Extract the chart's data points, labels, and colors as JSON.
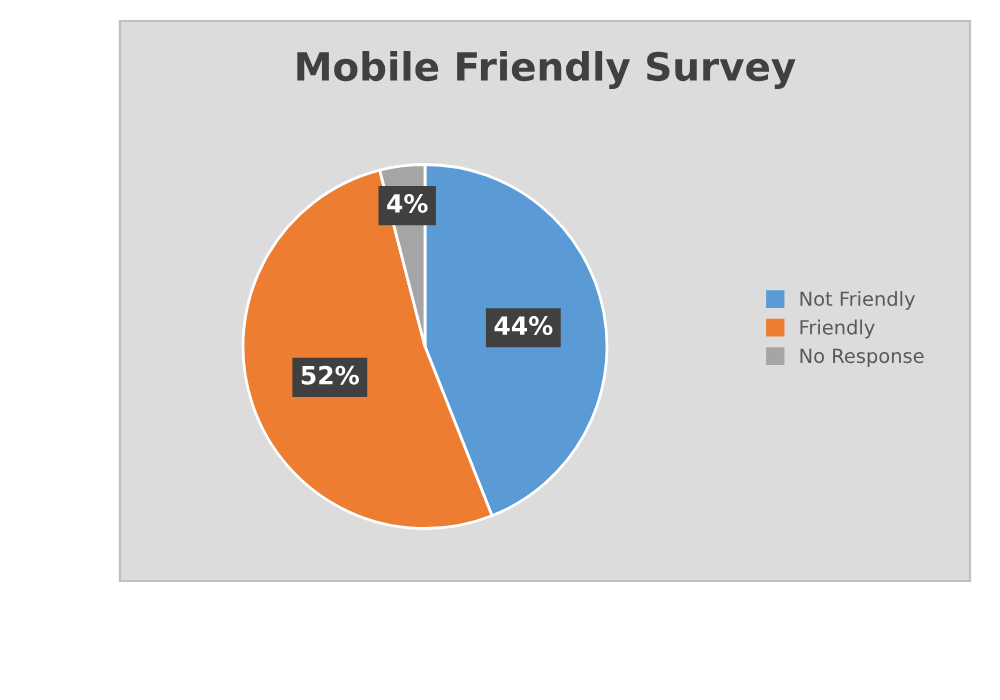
{
  "chart_data": {
    "type": "pie",
    "title": "Mobile Friendly Survey",
    "categories": [
      "Not Friendly",
      "Friendly",
      "No Response"
    ],
    "values": [
      44,
      52,
      4
    ],
    "colors": [
      "#5b9bd5",
      "#ed7d31",
      "#a5a5a5"
    ],
    "value_labels": [
      "44%",
      "52%",
      "4%"
    ],
    "legend": "right"
  }
}
